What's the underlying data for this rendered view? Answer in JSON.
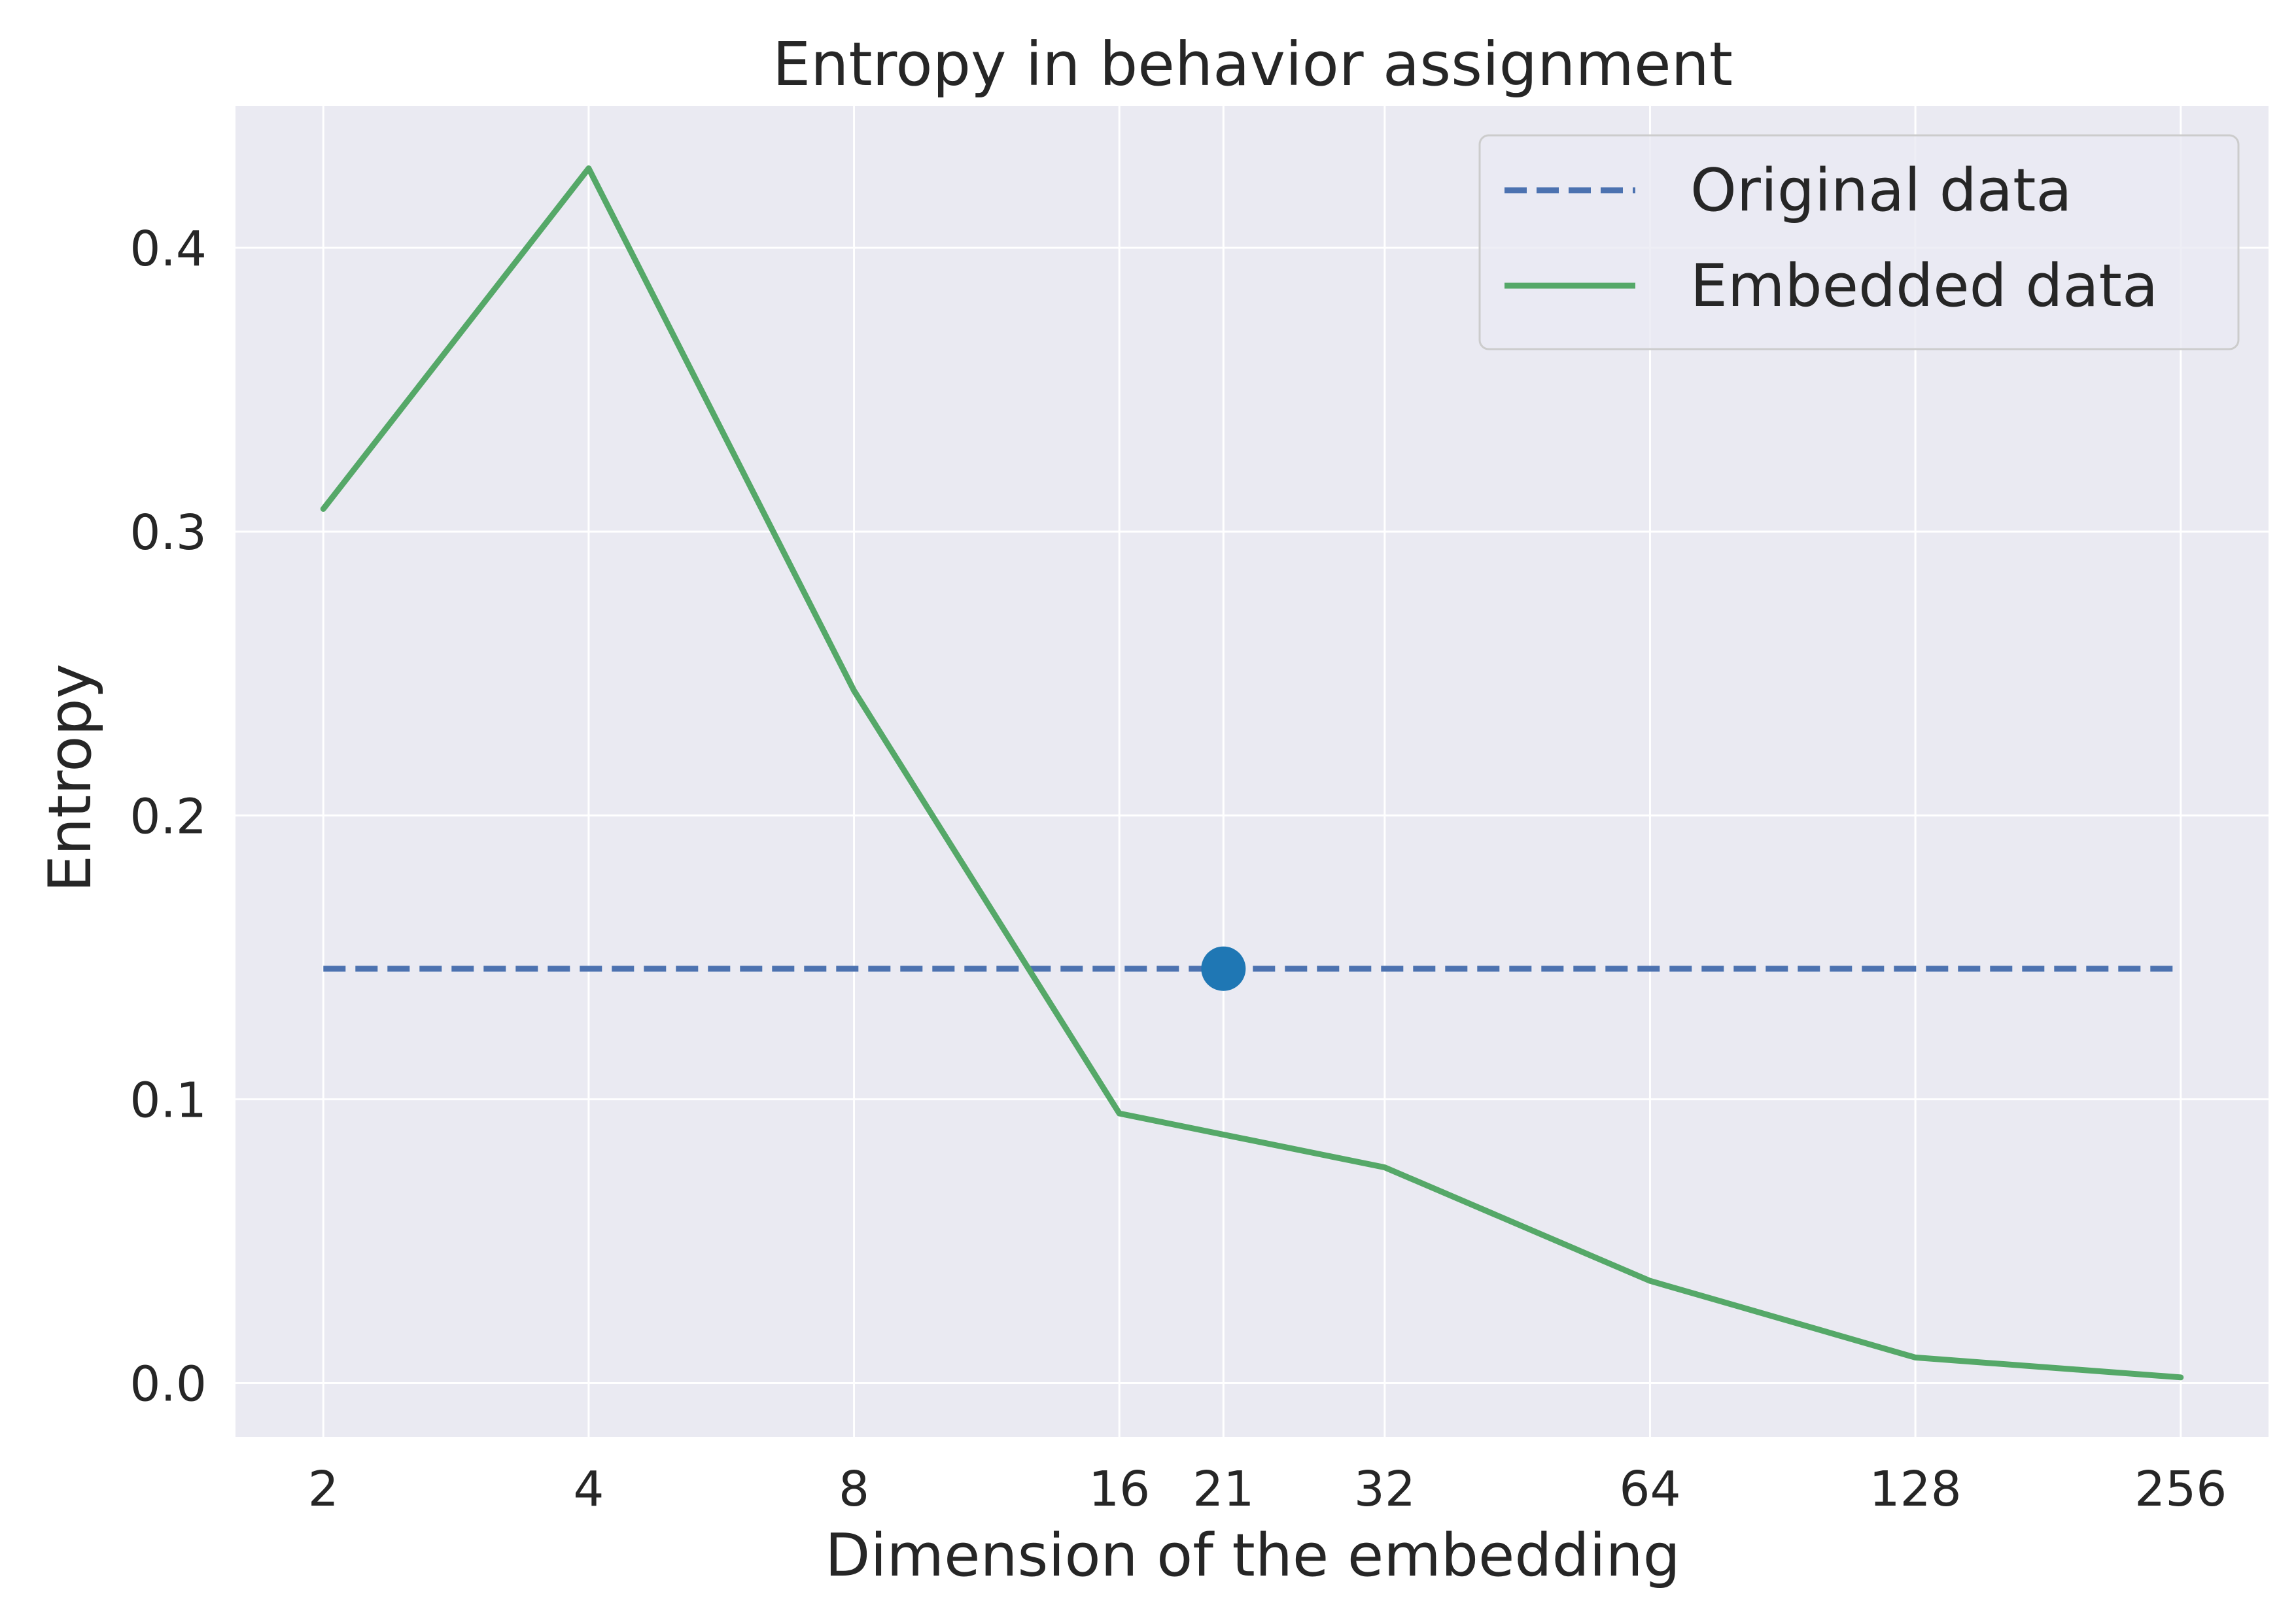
{
  "chart_data": {
    "type": "line",
    "title": "Entropy in behavior assignment",
    "xlabel": "Dimension of the embedding",
    "ylabel": "Entropy",
    "x_scale": "log2",
    "x_ticks": [
      2,
      4,
      8,
      16,
      21,
      32,
      64,
      128,
      256
    ],
    "x_tick_labels": [
      "2",
      "4",
      "8",
      "16",
      "21",
      "32",
      "64",
      "128",
      "256"
    ],
    "y_ticks": [
      0.0,
      0.1,
      0.2,
      0.3,
      0.4
    ],
    "y_tick_labels": [
      "0.0",
      "0.1",
      "0.2",
      "0.3",
      "0.4"
    ],
    "ylim": [
      -0.019,
      0.45
    ],
    "xlim": [
      1.59,
      322
    ],
    "grid": true,
    "legend_position": "top-right",
    "series": [
      {
        "name": "Original data",
        "style": "dashed",
        "color": "#4c72b0",
        "x": [
          2,
          256
        ],
        "y": [
          0.146,
          0.146
        ]
      },
      {
        "name": "Embedded data",
        "style": "solid",
        "color": "#55a868",
        "x": [
          2,
          4,
          8,
          16,
          32,
          64,
          128,
          256
        ],
        "y": [
          0.308,
          0.428,
          0.244,
          0.095,
          0.076,
          0.036,
          0.009,
          0.002
        ]
      }
    ],
    "highlight_point": {
      "x": 21,
      "y": 0.146,
      "color": "#1f77b4"
    },
    "colors": {
      "plot_background": "#eaeaf2",
      "grid": "#ffffff",
      "text": "#262626"
    }
  }
}
